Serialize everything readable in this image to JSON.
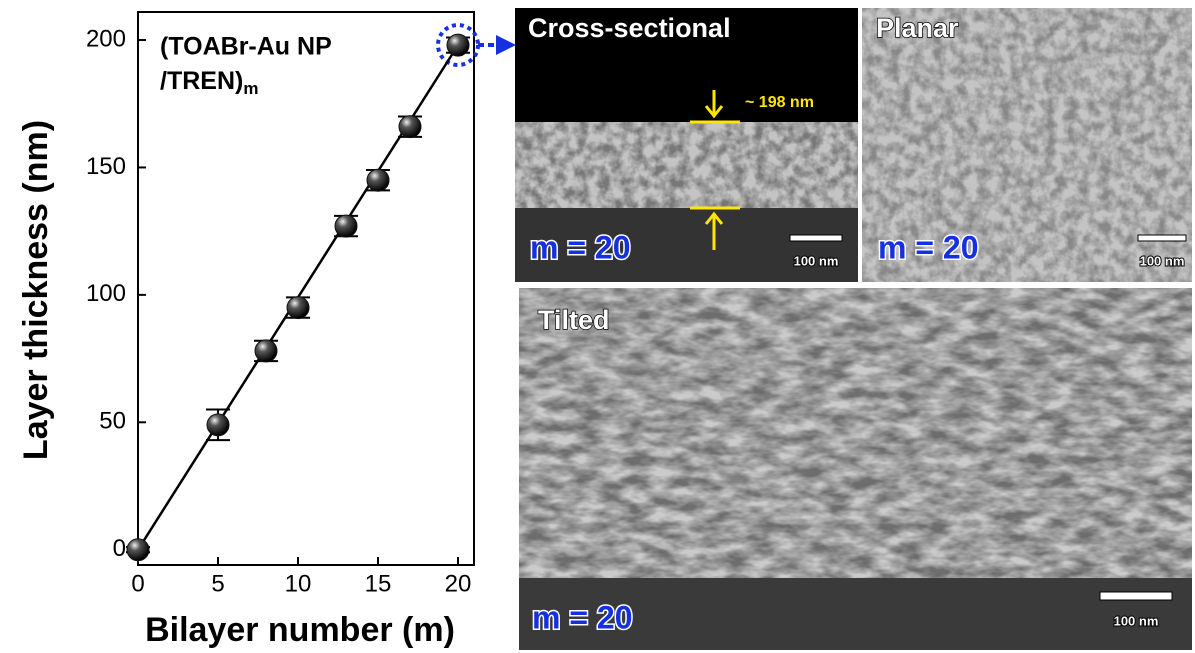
{
  "chart_data": {
    "type": "scatter",
    "xlabel": "Bilayer number (m)",
    "ylabel": "Layer thickness (nm)",
    "annotation": {
      "line1": "(TOABr-Au NP",
      "line2": "/TREN)",
      "subscript": "m"
    },
    "x": [
      0,
      5,
      8,
      10,
      13,
      15,
      17,
      20
    ],
    "values": [
      0,
      49,
      78,
      95,
      127,
      145,
      166,
      198
    ],
    "errors": [
      1,
      6,
      4,
      4,
      4,
      4,
      4,
      3
    ],
    "fit": {
      "x": [
        0,
        20
      ],
      "values": [
        0,
        198
      ]
    },
    "color": "#111111",
    "xlim": [
      0,
      21
    ],
    "ylim": [
      -6,
      211
    ],
    "xticks": [
      0,
      5,
      10,
      15,
      20
    ],
    "yticks": [
      0,
      50,
      100,
      150,
      200
    ]
  },
  "panels": {
    "cross": {
      "title": "Cross-sectional",
      "thickness": "~ 198 nm",
      "m": "m = 20",
      "scale": "100 nm"
    },
    "planar": {
      "title": "Planar",
      "m": "m = 20",
      "scale": "100 nm"
    },
    "tilted": {
      "title": "Tilted",
      "m": "m = 20",
      "scale": "100 nm"
    }
  }
}
